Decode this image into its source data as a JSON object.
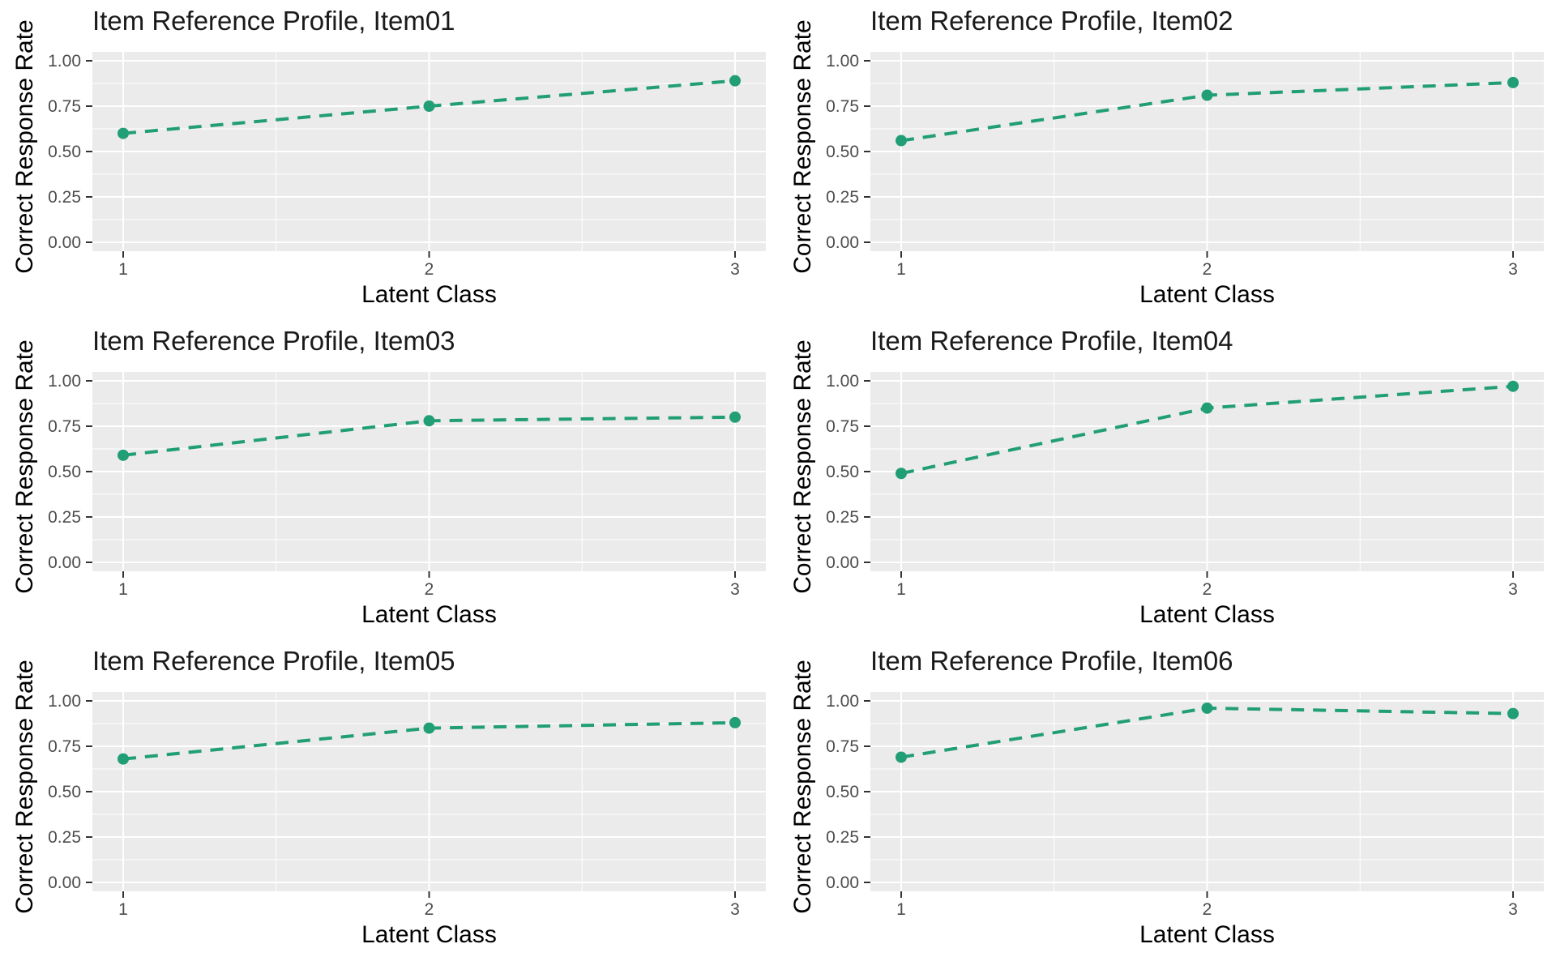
{
  "figure": {
    "columns": 2,
    "rows": 3,
    "style": {
      "accent_color": "#219E76",
      "panel_bg": "#EBEBEB",
      "grid_color": "#FFFFFF",
      "tick_label_color": "#4D4D4D",
      "tick_mark_color": "#333333",
      "axis_title_color": "#000000",
      "title_color": "#1A1A1A",
      "page_bg": "#FFFFFF"
    }
  },
  "chart_data": [
    {
      "type": "line",
      "title": "Item Reference Profile, Item01",
      "xlabel": "Latent Class",
      "ylabel": "Correct Response Rate",
      "x": [
        1,
        2,
        3
      ],
      "values": [
        0.6,
        0.75,
        0.89
      ],
      "xticks": [
        "1",
        "2",
        "3"
      ],
      "yticks": [
        "0.00",
        "0.25",
        "0.50",
        "0.75",
        "1.00"
      ],
      "xlim": [
        1,
        3
      ],
      "ylim": [
        0,
        1
      ],
      "grid": true,
      "legend": "none",
      "line_style": "dashed",
      "marker": "circle"
    },
    {
      "type": "line",
      "title": "Item Reference Profile, Item02",
      "xlabel": "Latent Class",
      "ylabel": "Correct Response Rate",
      "x": [
        1,
        2,
        3
      ],
      "values": [
        0.56,
        0.81,
        0.88
      ],
      "xticks": [
        "1",
        "2",
        "3"
      ],
      "yticks": [
        "0.00",
        "0.25",
        "0.50",
        "0.75",
        "1.00"
      ],
      "xlim": [
        1,
        3
      ],
      "ylim": [
        0,
        1
      ],
      "grid": true,
      "legend": "none",
      "line_style": "dashed",
      "marker": "circle"
    },
    {
      "type": "line",
      "title": "Item Reference Profile, Item03",
      "xlabel": "Latent Class",
      "ylabel": "Correct Response Rate",
      "x": [
        1,
        2,
        3
      ],
      "values": [
        0.59,
        0.78,
        0.8
      ],
      "xticks": [
        "1",
        "2",
        "3"
      ],
      "yticks": [
        "0.00",
        "0.25",
        "0.50",
        "0.75",
        "1.00"
      ],
      "xlim": [
        1,
        3
      ],
      "ylim": [
        0,
        1
      ],
      "grid": true,
      "legend": "none",
      "line_style": "dashed",
      "marker": "circle"
    },
    {
      "type": "line",
      "title": "Item Reference Profile, Item04",
      "xlabel": "Latent Class",
      "ylabel": "Correct Response Rate",
      "x": [
        1,
        2,
        3
      ],
      "values": [
        0.49,
        0.85,
        0.97
      ],
      "xticks": [
        "1",
        "2",
        "3"
      ],
      "yticks": [
        "0.00",
        "0.25",
        "0.50",
        "0.75",
        "1.00"
      ],
      "xlim": [
        1,
        3
      ],
      "ylim": [
        0,
        1
      ],
      "grid": true,
      "legend": "none",
      "line_style": "dashed",
      "marker": "circle"
    },
    {
      "type": "line",
      "title": "Item Reference Profile, Item05",
      "xlabel": "Latent Class",
      "ylabel": "Correct Response Rate",
      "x": [
        1,
        2,
        3
      ],
      "values": [
        0.68,
        0.85,
        0.88
      ],
      "xticks": [
        "1",
        "2",
        "3"
      ],
      "yticks": [
        "0.00",
        "0.25",
        "0.50",
        "0.75",
        "1.00"
      ],
      "xlim": [
        1,
        3
      ],
      "ylim": [
        0,
        1
      ],
      "grid": true,
      "legend": "none",
      "line_style": "dashed",
      "marker": "circle"
    },
    {
      "type": "line",
      "title": "Item Reference Profile, Item06",
      "xlabel": "Latent Class",
      "ylabel": "Correct Response Rate",
      "x": [
        1,
        2,
        3
      ],
      "values": [
        0.69,
        0.96,
        0.93
      ],
      "xticks": [
        "1",
        "2",
        "3"
      ],
      "yticks": [
        "0.00",
        "0.25",
        "0.50",
        "0.75",
        "1.00"
      ],
      "xlim": [
        1,
        3
      ],
      "ylim": [
        0,
        1
      ],
      "grid": true,
      "legend": "none",
      "line_style": "dashed",
      "marker": "circle"
    }
  ]
}
